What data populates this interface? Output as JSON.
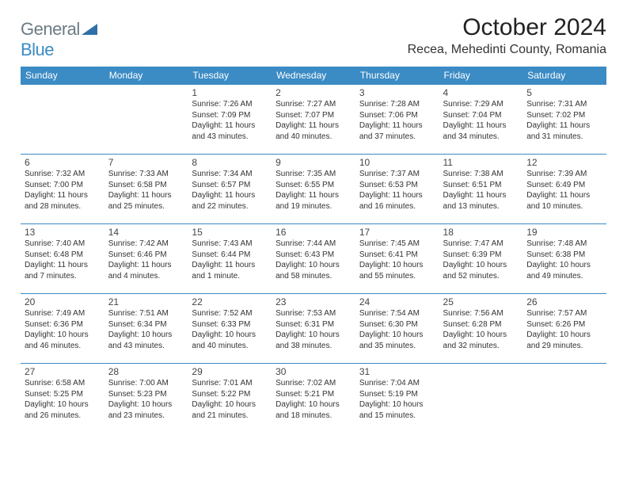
{
  "logo": {
    "general": "General",
    "blue": "Blue"
  },
  "title": "October 2024",
  "location": "Recea, Mehedinti County, Romania",
  "colors": {
    "accent": "#3b8bc4",
    "text": "#333333",
    "logo_gray": "#6b7b84"
  },
  "headers": [
    "Sunday",
    "Monday",
    "Tuesday",
    "Wednesday",
    "Thursday",
    "Friday",
    "Saturday"
  ],
  "weeks": [
    [
      null,
      null,
      {
        "n": "1",
        "sr": "Sunrise: 7:26 AM",
        "ss": "Sunset: 7:09 PM",
        "d1": "Daylight: 11 hours",
        "d2": "and 43 minutes."
      },
      {
        "n": "2",
        "sr": "Sunrise: 7:27 AM",
        "ss": "Sunset: 7:07 PM",
        "d1": "Daylight: 11 hours",
        "d2": "and 40 minutes."
      },
      {
        "n": "3",
        "sr": "Sunrise: 7:28 AM",
        "ss": "Sunset: 7:06 PM",
        "d1": "Daylight: 11 hours",
        "d2": "and 37 minutes."
      },
      {
        "n": "4",
        "sr": "Sunrise: 7:29 AM",
        "ss": "Sunset: 7:04 PM",
        "d1": "Daylight: 11 hours",
        "d2": "and 34 minutes."
      },
      {
        "n": "5",
        "sr": "Sunrise: 7:31 AM",
        "ss": "Sunset: 7:02 PM",
        "d1": "Daylight: 11 hours",
        "d2": "and 31 minutes."
      }
    ],
    [
      {
        "n": "6",
        "sr": "Sunrise: 7:32 AM",
        "ss": "Sunset: 7:00 PM",
        "d1": "Daylight: 11 hours",
        "d2": "and 28 minutes."
      },
      {
        "n": "7",
        "sr": "Sunrise: 7:33 AM",
        "ss": "Sunset: 6:58 PM",
        "d1": "Daylight: 11 hours",
        "d2": "and 25 minutes."
      },
      {
        "n": "8",
        "sr": "Sunrise: 7:34 AM",
        "ss": "Sunset: 6:57 PM",
        "d1": "Daylight: 11 hours",
        "d2": "and 22 minutes."
      },
      {
        "n": "9",
        "sr": "Sunrise: 7:35 AM",
        "ss": "Sunset: 6:55 PM",
        "d1": "Daylight: 11 hours",
        "d2": "and 19 minutes."
      },
      {
        "n": "10",
        "sr": "Sunrise: 7:37 AM",
        "ss": "Sunset: 6:53 PM",
        "d1": "Daylight: 11 hours",
        "d2": "and 16 minutes."
      },
      {
        "n": "11",
        "sr": "Sunrise: 7:38 AM",
        "ss": "Sunset: 6:51 PM",
        "d1": "Daylight: 11 hours",
        "d2": "and 13 minutes."
      },
      {
        "n": "12",
        "sr": "Sunrise: 7:39 AM",
        "ss": "Sunset: 6:49 PM",
        "d1": "Daylight: 11 hours",
        "d2": "and 10 minutes."
      }
    ],
    [
      {
        "n": "13",
        "sr": "Sunrise: 7:40 AM",
        "ss": "Sunset: 6:48 PM",
        "d1": "Daylight: 11 hours",
        "d2": "and 7 minutes."
      },
      {
        "n": "14",
        "sr": "Sunrise: 7:42 AM",
        "ss": "Sunset: 6:46 PM",
        "d1": "Daylight: 11 hours",
        "d2": "and 4 minutes."
      },
      {
        "n": "15",
        "sr": "Sunrise: 7:43 AM",
        "ss": "Sunset: 6:44 PM",
        "d1": "Daylight: 11 hours",
        "d2": "and 1 minute."
      },
      {
        "n": "16",
        "sr": "Sunrise: 7:44 AM",
        "ss": "Sunset: 6:43 PM",
        "d1": "Daylight: 10 hours",
        "d2": "and 58 minutes."
      },
      {
        "n": "17",
        "sr": "Sunrise: 7:45 AM",
        "ss": "Sunset: 6:41 PM",
        "d1": "Daylight: 10 hours",
        "d2": "and 55 minutes."
      },
      {
        "n": "18",
        "sr": "Sunrise: 7:47 AM",
        "ss": "Sunset: 6:39 PM",
        "d1": "Daylight: 10 hours",
        "d2": "and 52 minutes."
      },
      {
        "n": "19",
        "sr": "Sunrise: 7:48 AM",
        "ss": "Sunset: 6:38 PM",
        "d1": "Daylight: 10 hours",
        "d2": "and 49 minutes."
      }
    ],
    [
      {
        "n": "20",
        "sr": "Sunrise: 7:49 AM",
        "ss": "Sunset: 6:36 PM",
        "d1": "Daylight: 10 hours",
        "d2": "and 46 minutes."
      },
      {
        "n": "21",
        "sr": "Sunrise: 7:51 AM",
        "ss": "Sunset: 6:34 PM",
        "d1": "Daylight: 10 hours",
        "d2": "and 43 minutes."
      },
      {
        "n": "22",
        "sr": "Sunrise: 7:52 AM",
        "ss": "Sunset: 6:33 PM",
        "d1": "Daylight: 10 hours",
        "d2": "and 40 minutes."
      },
      {
        "n": "23",
        "sr": "Sunrise: 7:53 AM",
        "ss": "Sunset: 6:31 PM",
        "d1": "Daylight: 10 hours",
        "d2": "and 38 minutes."
      },
      {
        "n": "24",
        "sr": "Sunrise: 7:54 AM",
        "ss": "Sunset: 6:30 PM",
        "d1": "Daylight: 10 hours",
        "d2": "and 35 minutes."
      },
      {
        "n": "25",
        "sr": "Sunrise: 7:56 AM",
        "ss": "Sunset: 6:28 PM",
        "d1": "Daylight: 10 hours",
        "d2": "and 32 minutes."
      },
      {
        "n": "26",
        "sr": "Sunrise: 7:57 AM",
        "ss": "Sunset: 6:26 PM",
        "d1": "Daylight: 10 hours",
        "d2": "and 29 minutes."
      }
    ],
    [
      {
        "n": "27",
        "sr": "Sunrise: 6:58 AM",
        "ss": "Sunset: 5:25 PM",
        "d1": "Daylight: 10 hours",
        "d2": "and 26 minutes."
      },
      {
        "n": "28",
        "sr": "Sunrise: 7:00 AM",
        "ss": "Sunset: 5:23 PM",
        "d1": "Daylight: 10 hours",
        "d2": "and 23 minutes."
      },
      {
        "n": "29",
        "sr": "Sunrise: 7:01 AM",
        "ss": "Sunset: 5:22 PM",
        "d1": "Daylight: 10 hours",
        "d2": "and 21 minutes."
      },
      {
        "n": "30",
        "sr": "Sunrise: 7:02 AM",
        "ss": "Sunset: 5:21 PM",
        "d1": "Daylight: 10 hours",
        "d2": "and 18 minutes."
      },
      {
        "n": "31",
        "sr": "Sunrise: 7:04 AM",
        "ss": "Sunset: 5:19 PM",
        "d1": "Daylight: 10 hours",
        "d2": "and 15 minutes."
      },
      null,
      null
    ]
  ]
}
